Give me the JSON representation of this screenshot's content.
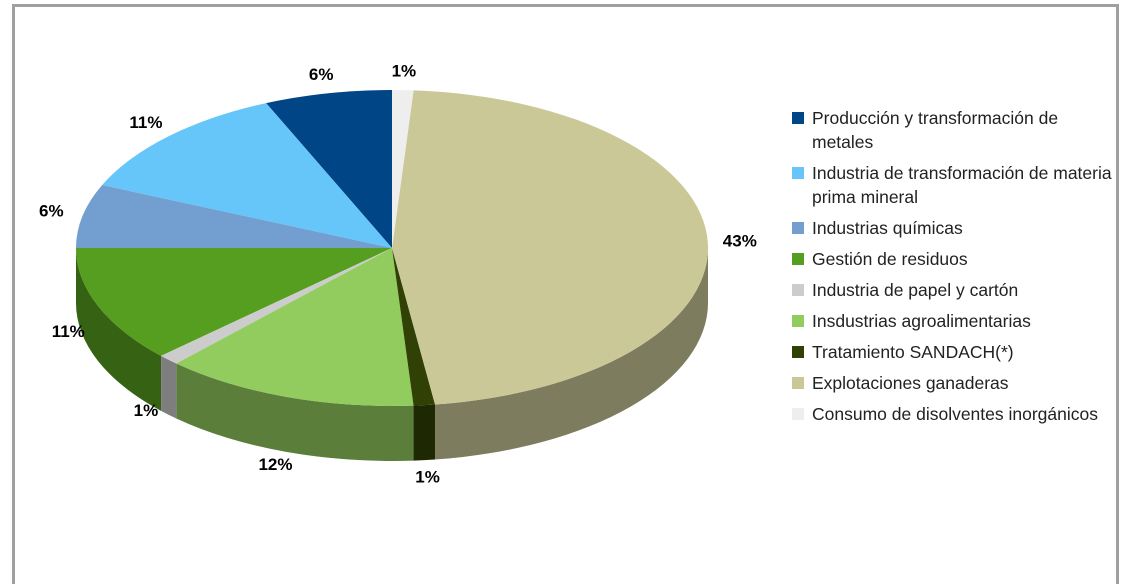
{
  "chart_data": {
    "type": "pie",
    "categories": [
      "Producción y transformación de metales",
      "Industria de transformación de materia prima mineral",
      "Industrias químicas",
      "Gestión de residuos",
      "Industria de papel y cartón",
      "Insdustrias agroalimentarias",
      "Tratamiento SANDACH(*)",
      "Explotaciones ganaderas",
      "Consumo de disolventes inorgánicos"
    ],
    "values": [
      6,
      11,
      6,
      11,
      1,
      12,
      1,
      43,
      1
    ],
    "value_labels": [
      "6%",
      "11%",
      "6%",
      "11%",
      "1%",
      "12%",
      "1%",
      "43%",
      "1%"
    ],
    "colors": [
      "#004586",
      "#66c6fa",
      "#729fcf",
      "#559e1f",
      "#cccccc",
      "#92cc5e",
      "#314004",
      "#cbc897",
      "#eeeeee"
    ],
    "legend": "right"
  }
}
